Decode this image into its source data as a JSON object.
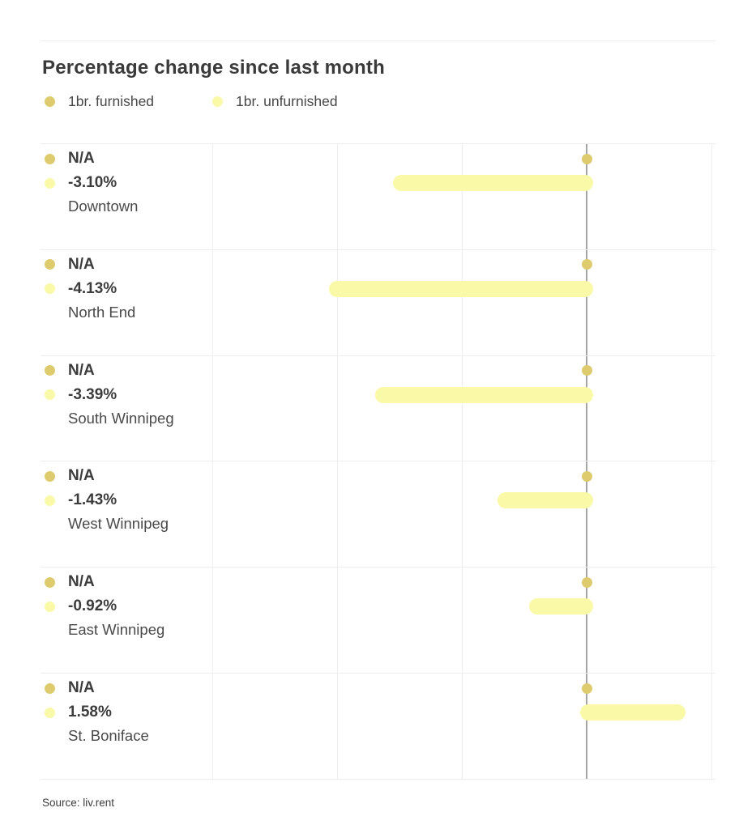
{
  "title": "Percentage change since last month",
  "source": "Source: liv.rent",
  "chart_data": {
    "type": "bar",
    "orientation": "horizontal",
    "title": "Percentage change since last month",
    "categories": [
      "Downtown",
      "North End",
      "South Winnipeg",
      "West Winnipeg",
      "East Winnipeg",
      "St. Boniface"
    ],
    "series": [
      {
        "name": "1br. furnished",
        "color": "#decb6d",
        "values": [
          null,
          null,
          null,
          null,
          null,
          null
        ],
        "value_labels": [
          "N/A",
          "N/A",
          "N/A",
          "N/A",
          "N/A",
          "N/A"
        ]
      },
      {
        "name": "1br. unfurnished",
        "color": "#f9f9a8",
        "values": [
          -3.1,
          -4.13,
          -3.39,
          -1.43,
          -0.92,
          1.58
        ],
        "value_labels": [
          "-3.10%",
          "-4.13%",
          "-3.39%",
          "-1.43%",
          "-0.92%",
          "1.58%"
        ]
      }
    ],
    "xlim": [
      -6.5,
      2.7
    ],
    "gridlines_pct": [
      -6,
      -4,
      -2,
      0,
      2
    ],
    "zero_line": true,
    "grid": "vertical-only",
    "legend_position": "top-left"
  },
  "colors": {
    "furnished": "#decb6d",
    "unfurnished": "#f9f9a8",
    "zero_line": "#a5a5a5",
    "gridline": "#ededed",
    "title_text": "#3a3a3a",
    "value_text": "#3c3c3c",
    "category_text": "#4a4a4a",
    "source_text": "#3c3c3c",
    "background": "#ffffff"
  }
}
